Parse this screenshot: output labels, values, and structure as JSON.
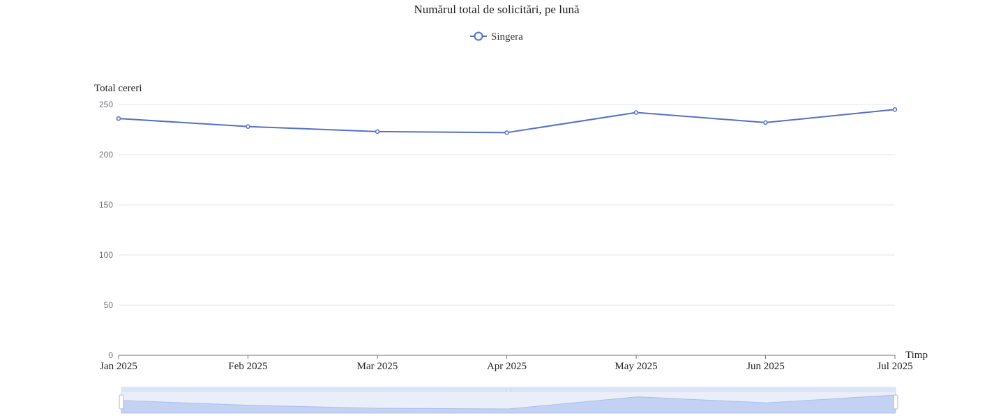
{
  "chart_data": {
    "type": "line",
    "title": "Numărul total de solicitări, pe lună",
    "xlabel": "Timp",
    "ylabel": "Total cereri",
    "categories": [
      "Jan 2025",
      "Feb 2025",
      "Mar 2025",
      "Apr 2025",
      "May 2025",
      "Jun 2025",
      "Jul 2025"
    ],
    "series": [
      {
        "name": "Singera",
        "values": [
          236,
          228,
          223,
          222,
          242,
          232,
          245
        ],
        "color": "#5470c6"
      }
    ],
    "ylim": [
      0,
      250
    ],
    "yticks": [
      0,
      50,
      100,
      150,
      200,
      250
    ],
    "grid": true,
    "legend_position": "top-center",
    "data_zoom": {
      "type": "slider",
      "start_percent": 0,
      "end_percent": 100
    }
  }
}
